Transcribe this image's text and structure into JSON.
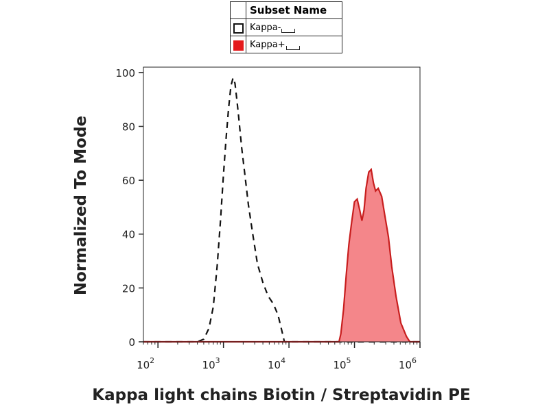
{
  "chart_data": {
    "type": "area",
    "title": "",
    "xlabel": "Kappa light chains Biotin / Streptavidin PE",
    "ylabel": "Normalized To Mode",
    "x_scale": "log",
    "xlim": [
      60,
      1000000
    ],
    "ylim": [
      0,
      102
    ],
    "x_ticks": [
      {
        "value": 100,
        "base": "10",
        "exp": "2"
      },
      {
        "value": 1000,
        "base": "10",
        "exp": "3"
      },
      {
        "value": 10000,
        "base": "10",
        "exp": "4"
      },
      {
        "value": 100000,
        "base": "10",
        "exp": "5"
      },
      {
        "value": 1000000,
        "base": "10",
        "exp": "6"
      }
    ],
    "y_ticks": [
      "0",
      "20",
      "40",
      "60",
      "80",
      "100"
    ],
    "grid": false,
    "legend": {
      "header": "Subset Name",
      "placement": "top-center",
      "items": [
        {
          "label": "Kappa-",
          "fill": "#ffffff",
          "border": "#111111"
        },
        {
          "label": "Kappa+",
          "fill": "#e41a1c",
          "border": "#e41a1c"
        }
      ]
    },
    "series": [
      {
        "name": "Kappa-",
        "style": "dashed",
        "stroke": "#111111",
        "fill": "none",
        "points": [
          [
            60,
            0
          ],
          [
            400,
            0
          ],
          [
            500,
            1
          ],
          [
            600,
            5
          ],
          [
            700,
            13
          ],
          [
            800,
            28
          ],
          [
            900,
            45
          ],
          [
            1000,
            62
          ],
          [
            1100,
            76
          ],
          [
            1200,
            87
          ],
          [
            1300,
            95
          ],
          [
            1400,
            98
          ],
          [
            1500,
            96
          ],
          [
            1600,
            90
          ],
          [
            1700,
            84
          ],
          [
            1900,
            72
          ],
          [
            2100,
            63
          ],
          [
            2400,
            51
          ],
          [
            2800,
            40
          ],
          [
            3300,
            29
          ],
          [
            4000,
            22
          ],
          [
            4800,
            17
          ],
          [
            5800,
            14
          ],
          [
            6800,
            10
          ],
          [
            7800,
            4
          ],
          [
            8500,
            0
          ],
          [
            1000000,
            0
          ]
        ]
      },
      {
        "name": "Kappa+",
        "style": "solid",
        "stroke": "#c81e1e",
        "fill": "#f4868a",
        "points": [
          [
            60,
            0
          ],
          [
            58000,
            0
          ],
          [
            62000,
            3
          ],
          [
            68000,
            12
          ],
          [
            75000,
            25
          ],
          [
            82000,
            36
          ],
          [
            90000,
            44
          ],
          [
            100000,
            52
          ],
          [
            110000,
            53
          ],
          [
            120000,
            49
          ],
          [
            130000,
            45
          ],
          [
            140000,
            49
          ],
          [
            150000,
            57
          ],
          [
            165000,
            63
          ],
          [
            180000,
            64
          ],
          [
            195000,
            59
          ],
          [
            210000,
            56
          ],
          [
            230000,
            57
          ],
          [
            260000,
            54
          ],
          [
            290000,
            47
          ],
          [
            330000,
            39
          ],
          [
            370000,
            28
          ],
          [
            430000,
            17
          ],
          [
            510000,
            7
          ],
          [
            620000,
            2
          ],
          [
            700000,
            0
          ],
          [
            1000000,
            0
          ]
        ]
      }
    ]
  }
}
